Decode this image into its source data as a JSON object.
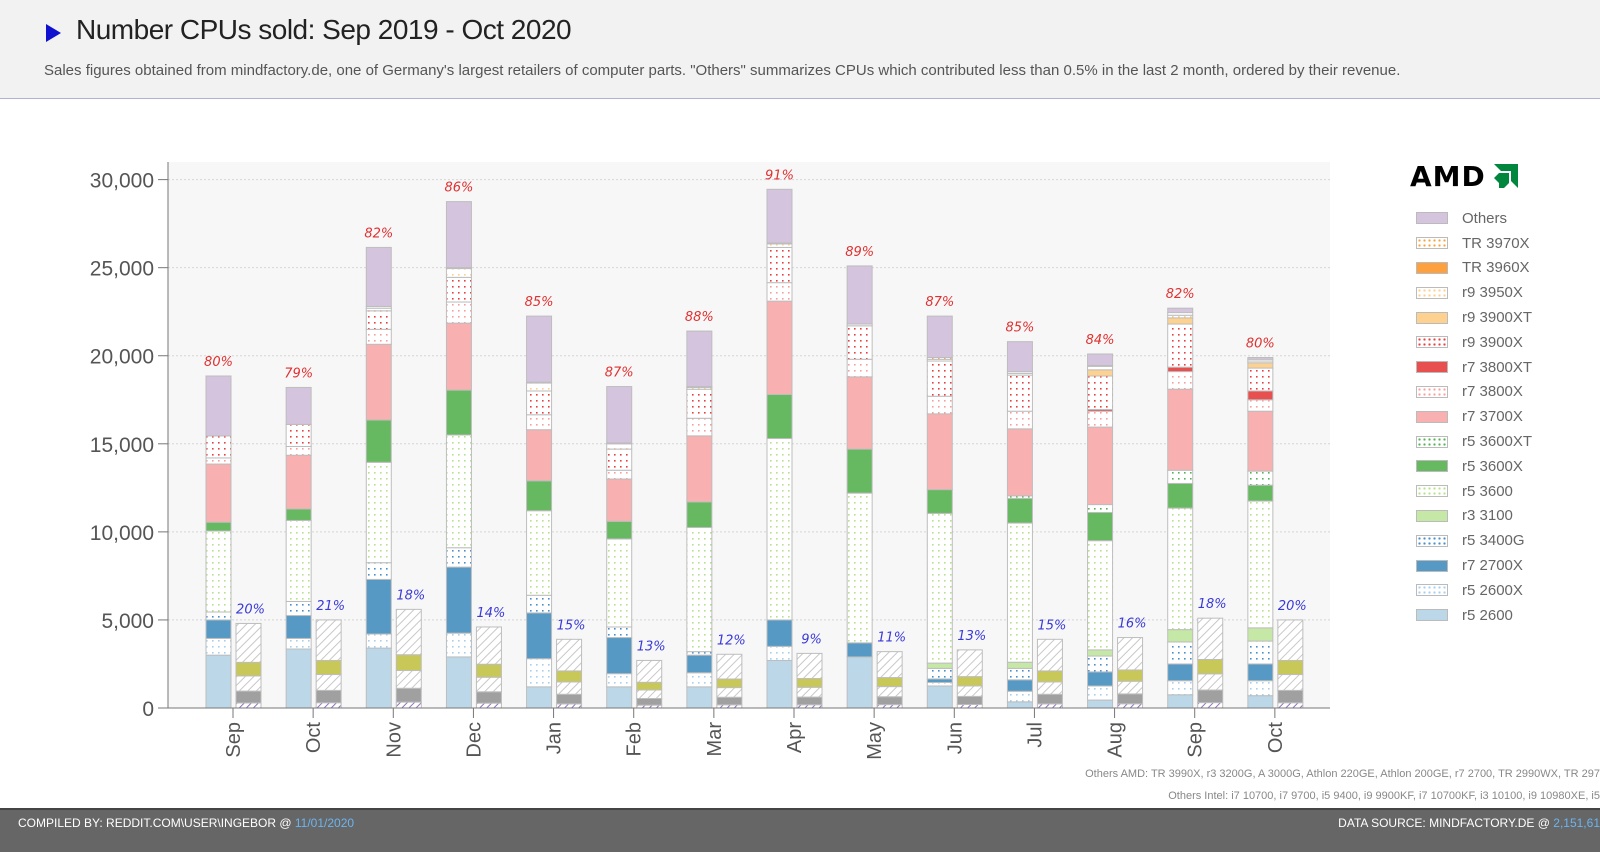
{
  "header": {
    "title": "Number CPUs sold: Sep 2019 - Oct 2020",
    "subtitle": "Sales figures obtained from mindfactory.de, one of Germany's largest retailers of computer parts. \"Others\" summarizes CPUs which contributed less than 0.5% in the last 2 month, ordered by their revenue."
  },
  "brand": {
    "logo_text": "AMD",
    "logo_color": "#00873d"
  },
  "notes": {
    "others_amd": "Others AMD: TR 3990X, r3 3200G, A 3000G, Athlon 220GE, Athlon 200GE, r7 2700, TR 2990WX, TR 297",
    "others_intel": "Others Intel: i7 10700, i7 9700, i5 9400, i9 9900KF, i7 10700KF, i3 10100, i9 10980XE, i5"
  },
  "footer": {
    "compiled_prefix": "COMPILED BY: REDDIT.COM\\USER\\INGEBOR @ ",
    "compiled_date": "11/01/2020",
    "source_prefix": "DATA SOURCE: MINDFACTORY.DE @ ",
    "source_value": "2,151,61"
  },
  "legend": [
    {
      "label": "Others",
      "color": "#d4c4de",
      "pattern": "solid"
    },
    {
      "label": "TR 3970X",
      "color": "#f7a440",
      "pattern": "dots"
    },
    {
      "label": "TR 3960X",
      "color": "#fda040",
      "pattern": "solid"
    },
    {
      "label": "r9 3950X",
      "color": "#fdd08f",
      "pattern": "dots"
    },
    {
      "label": "r9 3900XT",
      "color": "#fdd291",
      "pattern": "solid"
    },
    {
      "label": "r9 3900X",
      "color": "#e84040",
      "pattern": "dots"
    },
    {
      "label": "r7 3800XT",
      "color": "#e85050",
      "pattern": "solid"
    },
    {
      "label": "r7 3800X",
      "color": "#f5a0a0",
      "pattern": "dots"
    },
    {
      "label": "r7 3700X",
      "color": "#f8b0b0",
      "pattern": "solid"
    },
    {
      "label": "r5 3600XT",
      "color": "#58b058",
      "pattern": "dots"
    },
    {
      "label": "r5 3600X",
      "color": "#66b861",
      "pattern": "solid"
    },
    {
      "label": "r5 3600",
      "color": "#b8e090",
      "pattern": "dots"
    },
    {
      "label": "r3 3100",
      "color": "#c6e8a6",
      "pattern": "solid"
    },
    {
      "label": "r5 3400G",
      "color": "#4a90c8",
      "pattern": "dots"
    },
    {
      "label": "r7 2700X",
      "color": "#5599c4",
      "pattern": "solid"
    },
    {
      "label": "r5 2600X",
      "color": "#a8d0ec",
      "pattern": "dots"
    },
    {
      "label": "r5 2600",
      "color": "#bcd8e8",
      "pattern": "solid"
    }
  ],
  "chart_data": {
    "type": "bar",
    "stacked": true,
    "title": "Number CPUs sold: Sep 2019 - Oct 2020",
    "xlabel": "",
    "ylabel": "",
    "ylim": [
      0,
      31000
    ],
    "yticks": [
      0,
      5000,
      10000,
      15000,
      20000,
      25000,
      30000
    ],
    "ytick_labels": [
      "0",
      "5,000",
      "10,000",
      "15,000",
      "20,000",
      "25,000",
      "30,000"
    ],
    "grid": true,
    "legend_position": "right",
    "categories": [
      "Sep",
      "Oct",
      "Nov",
      "Dec",
      "Jan",
      "Feb",
      "Mar",
      "Apr",
      "May",
      "Jun",
      "Jul",
      "Aug",
      "Sep",
      "Oct"
    ],
    "amd_share_labels": [
      "80%",
      "79%",
      "82%",
      "86%",
      "85%",
      "87%",
      "88%",
      "91%",
      "89%",
      "87%",
      "85%",
      "84%",
      "82%",
      "80%"
    ],
    "intel_share_labels": [
      "20%",
      "21%",
      "18%",
      "14%",
      "15%",
      "13%",
      "12%",
      "9%",
      "11%",
      "13%",
      "15%",
      "16%",
      "18%",
      "20%"
    ],
    "amd_series": [
      {
        "name": "r5 2600",
        "values": [
          3000,
          3350,
          3400,
          2900,
          1200,
          1200,
          1200,
          2700,
          2900,
          1250,
          350,
          450,
          750,
          700
        ]
      },
      {
        "name": "r5 2600X",
        "values": [
          950,
          600,
          800,
          1350,
          1600,
          750,
          800,
          800,
          0,
          200,
          600,
          800,
          800,
          850
        ]
      },
      {
        "name": "r7 2700X",
        "values": [
          1050,
          1300,
          3100,
          3750,
          2600,
          2050,
          1000,
          1500,
          800,
          200,
          650,
          800,
          950,
          950
        ]
      },
      {
        "name": "r5 3400G",
        "values": [
          450,
          800,
          950,
          1100,
          1000,
          600,
          200,
          0,
          0,
          600,
          650,
          900,
          1250,
          1300
        ]
      },
      {
        "name": "r3 3100",
        "values": [
          0,
          0,
          0,
          0,
          0,
          0,
          0,
          0,
          0,
          300,
          350,
          350,
          700,
          750
        ]
      },
      {
        "name": "r5 3600",
        "values": [
          4600,
          4600,
          5700,
          6400,
          4800,
          5000,
          7050,
          10300,
          8500,
          8500,
          7900,
          6200,
          6900,
          7200
        ]
      },
      {
        "name": "r5 3600X",
        "values": [
          500,
          650,
          2400,
          2550,
          1700,
          1000,
          1450,
          2500,
          2500,
          1350,
          1400,
          1600,
          1400,
          900
        ]
      },
      {
        "name": "r5 3600XT",
        "values": [
          0,
          0,
          0,
          0,
          0,
          0,
          0,
          0,
          0,
          0,
          150,
          450,
          750,
          800
        ]
      },
      {
        "name": "r7 3700X",
        "values": [
          3300,
          3050,
          4300,
          3800,
          2900,
          2400,
          3750,
          5300,
          4100,
          4300,
          3800,
          4400,
          4600,
          3400
        ]
      },
      {
        "name": "r7 3800X",
        "values": [
          350,
          500,
          850,
          1200,
          850,
          500,
          1000,
          1050,
          1000,
          1000,
          1000,
          900,
          1000,
          650
        ]
      },
      {
        "name": "r7 3800XT",
        "values": [
          0,
          0,
          0,
          0,
          0,
          0,
          0,
          0,
          0,
          0,
          0,
          100,
          250,
          500
        ]
      },
      {
        "name": "r9 3900X",
        "values": [
          1250,
          1250,
          1050,
          1400,
          1350,
          1200,
          1650,
          2000,
          1900,
          2000,
          2050,
          1900,
          2450,
          1300
        ]
      },
      {
        "name": "r9 3900XT",
        "values": [
          0,
          0,
          0,
          0,
          0,
          0,
          0,
          0,
          0,
          0,
          0,
          350,
          350,
          300
        ]
      },
      {
        "name": "r9 3950X",
        "values": [
          0,
          0,
          150,
          500,
          450,
          300,
          100,
          200,
          0,
          100,
          100,
          200,
          150,
          100
        ]
      },
      {
        "name": "TR 3960X",
        "values": [
          0,
          0,
          0,
          0,
          0,
          0,
          0,
          0,
          0,
          0,
          0,
          0,
          0,
          0
        ]
      },
      {
        "name": "TR 3970X",
        "values": [
          0,
          0,
          100,
          50,
          50,
          50,
          50,
          50,
          100,
          100,
          100,
          50,
          150,
          100
        ]
      },
      {
        "name": "Others",
        "values": [
          3400,
          2100,
          3350,
          3750,
          3750,
          3200,
          3150,
          3050,
          3300,
          2350,
          1700,
          650,
          250,
          100
        ]
      }
    ],
    "intel_series_note": "Intel bars stacked with unlabeled gray/olive/tan/yellow/purple hatched segments",
    "intel_totals": [
      4800,
      5000,
      5600,
      4600,
      3900,
      2700,
      3050,
      3100,
      3200,
      3300,
      3900,
      4000,
      5100,
      5000
    ]
  }
}
